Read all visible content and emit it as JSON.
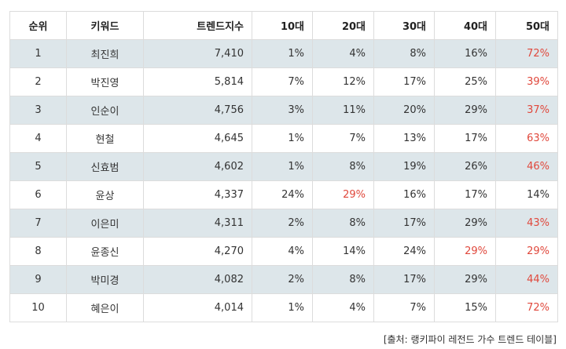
{
  "table": {
    "headers": [
      "순위",
      "키워드",
      "트렌드지수",
      "10대",
      "20대",
      "30대",
      "40대",
      "50대"
    ],
    "rows": [
      {
        "rank": "1",
        "keyword": "최진희",
        "index": "7,410",
        "ages": [
          "1%",
          "4%",
          "8%",
          "16%",
          "72%"
        ],
        "highlight": [
          false,
          false,
          false,
          false,
          true
        ]
      },
      {
        "rank": "2",
        "keyword": "박진영",
        "index": "5,814",
        "ages": [
          "7%",
          "12%",
          "17%",
          "25%",
          "39%"
        ],
        "highlight": [
          false,
          false,
          false,
          false,
          true
        ]
      },
      {
        "rank": "3",
        "keyword": "인순이",
        "index": "4,756",
        "ages": [
          "3%",
          "11%",
          "20%",
          "29%",
          "37%"
        ],
        "highlight": [
          false,
          false,
          false,
          false,
          true
        ]
      },
      {
        "rank": "4",
        "keyword": "현철",
        "index": "4,645",
        "ages": [
          "1%",
          "7%",
          "13%",
          "17%",
          "63%"
        ],
        "highlight": [
          false,
          false,
          false,
          false,
          true
        ]
      },
      {
        "rank": "5",
        "keyword": "신효범",
        "index": "4,602",
        "ages": [
          "1%",
          "8%",
          "19%",
          "26%",
          "46%"
        ],
        "highlight": [
          false,
          false,
          false,
          false,
          true
        ]
      },
      {
        "rank": "6",
        "keyword": "윤상",
        "index": "4,337",
        "ages": [
          "24%",
          "29%",
          "16%",
          "17%",
          "14%"
        ],
        "highlight": [
          false,
          true,
          false,
          false,
          false
        ]
      },
      {
        "rank": "7",
        "keyword": "이은미",
        "index": "4,311",
        "ages": [
          "2%",
          "8%",
          "17%",
          "29%",
          "43%"
        ],
        "highlight": [
          false,
          false,
          false,
          false,
          true
        ]
      },
      {
        "rank": "8",
        "keyword": "윤종신",
        "index": "4,270",
        "ages": [
          "4%",
          "14%",
          "24%",
          "29%",
          "29%"
        ],
        "highlight": [
          false,
          false,
          false,
          true,
          true
        ]
      },
      {
        "rank": "9",
        "keyword": "박미경",
        "index": "4,082",
        "ages": [
          "2%",
          "8%",
          "17%",
          "29%",
          "44%"
        ],
        "highlight": [
          false,
          false,
          false,
          false,
          true
        ]
      },
      {
        "rank": "10",
        "keyword": "혜은이",
        "index": "4,014",
        "ages": [
          "1%",
          "4%",
          "7%",
          "15%",
          "72%"
        ],
        "highlight": [
          false,
          false,
          false,
          false,
          true
        ]
      }
    ]
  },
  "source": "[출처: 랭키파이 레전드 가수 트렌드 테이블]",
  "colors": {
    "highlight": "#e0483c",
    "stripe": "#dde6ea",
    "border": "#dcdcdc"
  }
}
